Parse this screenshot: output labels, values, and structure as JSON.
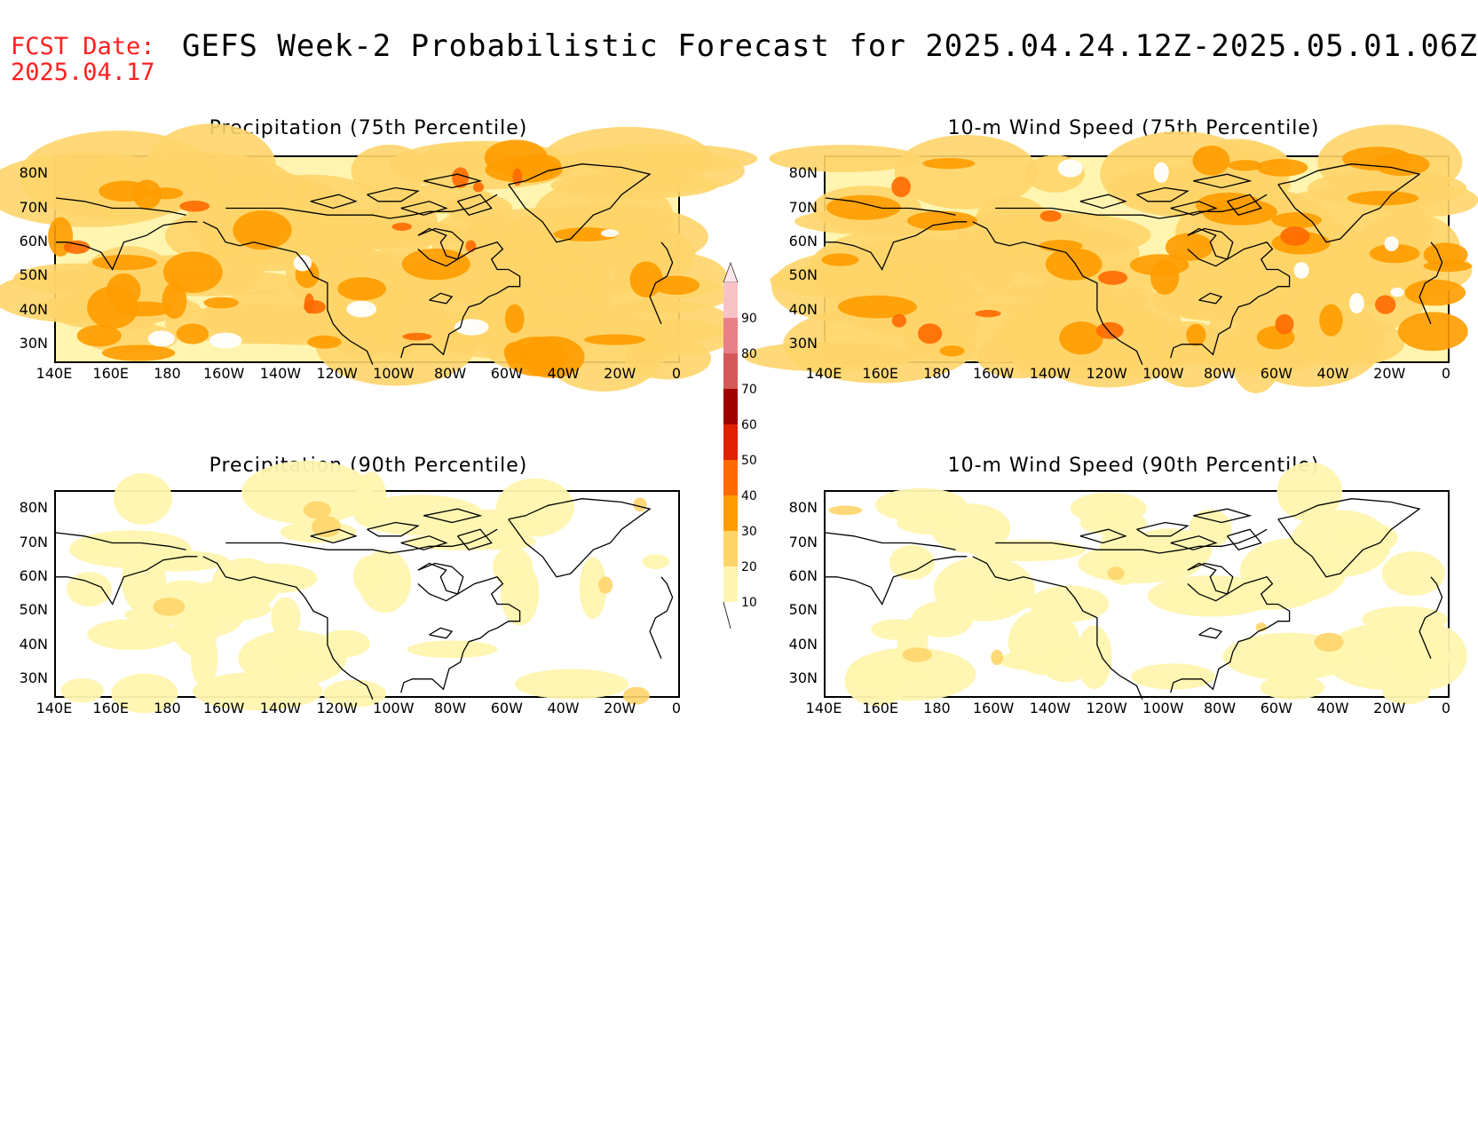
{
  "header": {
    "fcst_label": "FCST Date:",
    "fcst_date": "2025.04.17",
    "title": "GEFS Week-2 Probabilistic Forecast for 2025.04.24.12Z-2025.05.01.06Z"
  },
  "panels": [
    {
      "id": "precip75",
      "title": "Precipitation (75th Percentile)",
      "intensity": "high"
    },
    {
      "id": "wind75",
      "title": "10-m Wind Speed (75th Percentile)",
      "intensity": "high"
    },
    {
      "id": "precip90",
      "title": "Precipitation (90th Percentile)",
      "intensity": "low"
    },
    {
      "id": "wind90",
      "title": "10-m Wind Speed (90th Percentile)",
      "intensity": "low"
    }
  ],
  "axes": {
    "lat_labels": [
      "80N",
      "70N",
      "60N",
      "50N",
      "40N",
      "30N"
    ],
    "lon_labels": [
      "140E",
      "160E",
      "180",
      "160W",
      "140W",
      "120W",
      "100W",
      "80W",
      "60W",
      "40W",
      "20W",
      "0"
    ]
  },
  "colorbar": {
    "levels": [
      "90",
      "80",
      "70",
      "60",
      "50",
      "40",
      "30",
      "20",
      "10"
    ],
    "colors": [
      "#f7c3c6",
      "#e88088",
      "#d45a5a",
      "#a00000",
      "#e02000",
      "#ff6a00",
      "#ff9c00",
      "#ffd56a",
      "#fff5b0"
    ]
  }
}
